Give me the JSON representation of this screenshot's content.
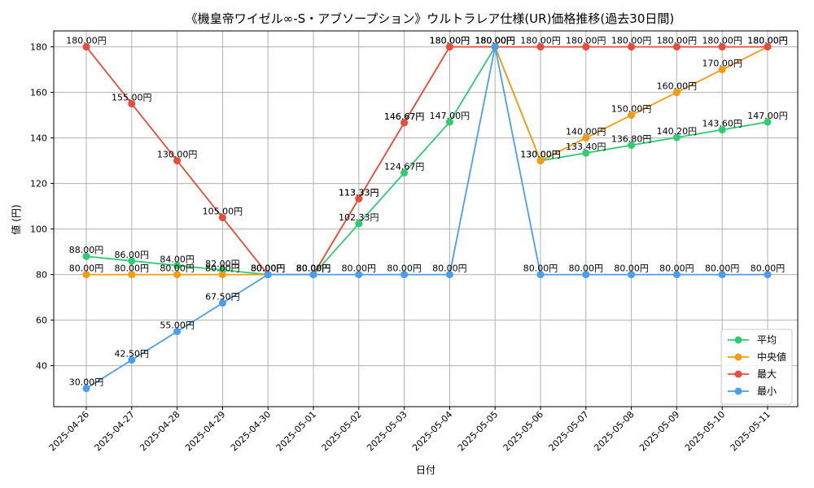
{
  "chart_data": {
    "type": "line",
    "title": "《機皇帝ワイゼル∞-S・アブソープション》ウルトラレア仕様(UR)価格推移(過去30日間)",
    "xlabel": "日付",
    "ylabel": "値 (円)",
    "ylim": [
      22,
      187
    ],
    "yticks": [
      40,
      60,
      80,
      100,
      120,
      140,
      160,
      180
    ],
    "grid": true,
    "legend_position": "bottom-right",
    "value_suffix": "円",
    "categories": [
      "2025-04-26",
      "2025-04-27",
      "2025-04-28",
      "2025-04-29",
      "2025-04-30",
      "2025-05-01",
      "2025-05-02",
      "2025-05-03",
      "2025-05-04",
      "2025-05-05",
      "2025-05-06",
      "2025-05-07",
      "2025-05-08",
      "2025-05-09",
      "2025-05-10",
      "2025-05-11"
    ],
    "series": [
      {
        "name": "平均",
        "color": "#2ecc71",
        "values": [
          88.0,
          86.0,
          84.0,
          82.0,
          80.0,
          80.0,
          102.33,
          124.67,
          147.0,
          180.0,
          130.0,
          133.4,
          136.8,
          140.2,
          143.6,
          147.0
        ]
      },
      {
        "name": "中央値",
        "color": "#f39c12",
        "values": [
          80.0,
          80.0,
          80.0,
          80.0,
          80.0,
          80.0,
          113.33,
          146.67,
          180.0,
          180.0,
          130.0,
          140.0,
          150.0,
          160.0,
          170.0,
          180.0
        ]
      },
      {
        "name": "最大",
        "color": "#e74c3c",
        "values": [
          180.0,
          155.0,
          130.0,
          105.0,
          80.0,
          80.0,
          113.33,
          146.67,
          180.0,
          180.0,
          180.0,
          180.0,
          180.0,
          180.0,
          180.0,
          180.0
        ]
      },
      {
        "name": "最小",
        "color": "#4a9eed",
        "values": [
          30.0,
          42.5,
          55.0,
          67.5,
          80.0,
          80.0,
          80.0,
          80.0,
          80.0,
          180.0,
          80.0,
          80.0,
          80.0,
          80.0,
          80.0,
          80.0
        ]
      }
    ]
  }
}
